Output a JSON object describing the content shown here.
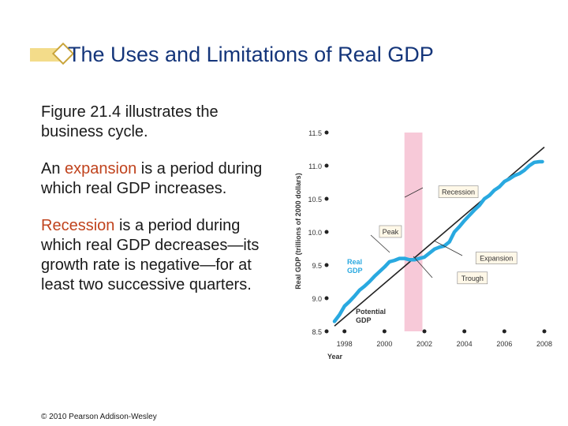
{
  "slide": {
    "title": "The Uses and Limitations of Real GDP",
    "paragraph1": "Figure 21.4 illustrates the business cycle.",
    "paragraph2_pre": "An ",
    "paragraph2_term": "expansion",
    "paragraph2_post": " is a period during which real GDP increases.",
    "paragraph3_term": "Recession",
    "paragraph3_post": " is a period during which real GDP decreases—its growth rate is negative—for at least two successive quarters.",
    "copyright": "© 2010 Pearson Addison-Wesley",
    "colors": {
      "title": "#14357a",
      "highlight": "#c0431d"
    }
  },
  "chart_data": {
    "type": "line",
    "xlabel": "Year",
    "ylabel": "Real GDP (trillions of 2000 dollars)",
    "xlim": [
      1997.5,
      2008
    ],
    "ylim": [
      8.5,
      11.5
    ],
    "x_ticks": [
      1998,
      2000,
      2002,
      2004,
      2006,
      2008
    ],
    "x_tick_labels": [
      "1998",
      "2000",
      "2002",
      "2004",
      "2006",
      "2008"
    ],
    "y_ticks": [
      8.5,
      9.0,
      9.5,
      10.0,
      10.5,
      11.0,
      11.5
    ],
    "y_tick_labels": [
      "8.5",
      "9.0",
      "9.5",
      "10.0",
      "10.5",
      "11.0",
      "11.5"
    ],
    "recession_band": {
      "start": 2001.0,
      "end": 2001.9
    },
    "series": [
      {
        "name": "Real GDP",
        "label": "Real GDP",
        "color": "#29a9e0",
        "x": [
          1997.5,
          1997.75,
          1998.0,
          1998.25,
          1998.5,
          1998.75,
          1999.0,
          1999.25,
          1999.5,
          1999.75,
          2000.0,
          2000.25,
          2000.5,
          2000.75,
          2001.0,
          2001.25,
          2001.5,
          2001.75,
          2002.0,
          2002.25,
          2002.5,
          2002.75,
          2003.0,
          2003.25,
          2003.5,
          2003.75,
          2004.0,
          2004.25,
          2004.5,
          2004.75,
          2005.0,
          2005.25,
          2005.5,
          2005.75,
          2006.0,
          2006.25,
          2006.5,
          2006.75,
          2007.0,
          2007.25,
          2007.5,
          2007.75,
          2007.9
        ],
        "values": [
          8.65,
          8.75,
          8.88,
          8.95,
          9.03,
          9.12,
          9.18,
          9.25,
          9.33,
          9.4,
          9.47,
          9.55,
          9.57,
          9.6,
          9.6,
          9.58,
          9.58,
          9.6,
          9.62,
          9.68,
          9.74,
          9.77,
          9.79,
          9.85,
          10.0,
          10.08,
          10.17,
          10.25,
          10.33,
          10.4,
          10.5,
          10.55,
          10.63,
          10.68,
          10.76,
          10.8,
          10.85,
          10.88,
          10.93,
          11.0,
          11.05,
          11.06,
          11.06
        ]
      },
      {
        "name": "Potential GDP",
        "label": "Potential GDP",
        "color": "#222222",
        "x": [
          1997.5,
          2008.0
        ],
        "values": [
          8.58,
          11.28
        ]
      }
    ],
    "annotations": [
      {
        "text": "Recession",
        "x": 2003.7,
        "y": 10.6
      },
      {
        "text": "Peak",
        "x": 2000.3,
        "y": 10.0
      },
      {
        "text": "Expansion",
        "x": 2005.6,
        "y": 9.6
      },
      {
        "text": "Trough",
        "x": 2004.4,
        "y": 9.3
      }
    ]
  }
}
